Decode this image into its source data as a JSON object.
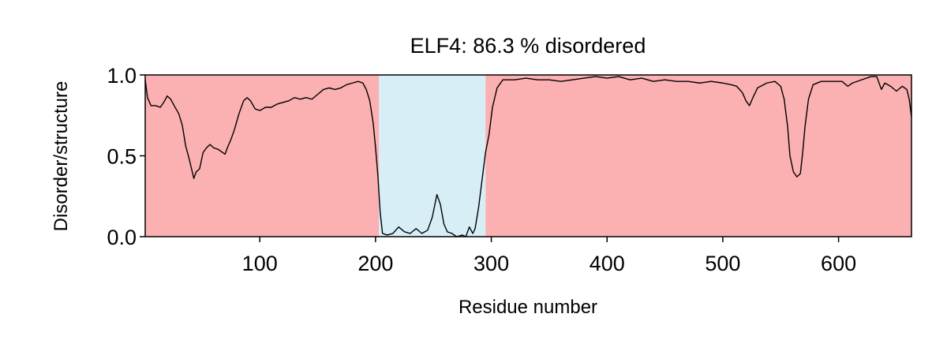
{
  "chart_data": {
    "type": "line",
    "title": "ELF4: 86.3 % disordered",
    "xlabel": "Residue number",
    "ylabel": "Disorder/structure",
    "xlim": [
      1,
      663
    ],
    "ylim": [
      0.0,
      1.0
    ],
    "grid": false,
    "x_ticks": [
      100,
      200,
      300,
      400,
      500,
      600
    ],
    "x_tick_labels": [
      "100",
      "200",
      "300",
      "400",
      "500",
      "600"
    ],
    "y_ticks": [
      0.0,
      0.5,
      1.0
    ],
    "y_tick_labels": [
      "0.0",
      "0.5",
      "1.0"
    ],
    "regions": [
      {
        "kind": "disordered",
        "start": 1,
        "end": 203,
        "color": "#fbb0b1"
      },
      {
        "kind": "ordered",
        "start": 203,
        "end": 295,
        "color": "#d8eef7"
      },
      {
        "kind": "disordered",
        "start": 295,
        "end": 663,
        "color": "#fbb0b1"
      }
    ],
    "series": [
      {
        "line_color": "#000000",
        "points": [
          [
            1,
            0.97
          ],
          [
            3,
            0.86
          ],
          [
            6,
            0.81
          ],
          [
            10,
            0.81
          ],
          [
            14,
            0.8
          ],
          [
            17,
            0.83
          ],
          [
            20,
            0.87
          ],
          [
            23,
            0.85
          ],
          [
            26,
            0.81
          ],
          [
            30,
            0.76
          ],
          [
            33,
            0.69
          ],
          [
            36,
            0.56
          ],
          [
            39,
            0.48
          ],
          [
            41,
            0.42
          ],
          [
            43,
            0.36
          ],
          [
            45,
            0.4
          ],
          [
            48,
            0.42
          ],
          [
            51,
            0.52
          ],
          [
            54,
            0.55
          ],
          [
            57,
            0.57
          ],
          [
            60,
            0.55
          ],
          [
            64,
            0.54
          ],
          [
            68,
            0.52
          ],
          [
            70,
            0.51
          ],
          [
            72,
            0.55
          ],
          [
            75,
            0.6
          ],
          [
            78,
            0.66
          ],
          [
            82,
            0.76
          ],
          [
            86,
            0.84
          ],
          [
            89,
            0.86
          ],
          [
            92,
            0.84
          ],
          [
            96,
            0.79
          ],
          [
            100,
            0.78
          ],
          [
            105,
            0.8
          ],
          [
            110,
            0.8
          ],
          [
            115,
            0.82
          ],
          [
            120,
            0.83
          ],
          [
            125,
            0.84
          ],
          [
            130,
            0.86
          ],
          [
            135,
            0.85
          ],
          [
            140,
            0.86
          ],
          [
            145,
            0.85
          ],
          [
            150,
            0.88
          ],
          [
            155,
            0.91
          ],
          [
            160,
            0.92
          ],
          [
            165,
            0.91
          ],
          [
            170,
            0.92
          ],
          [
            175,
            0.94
          ],
          [
            180,
            0.95
          ],
          [
            185,
            0.96
          ],
          [
            189,
            0.95
          ],
          [
            192,
            0.91
          ],
          [
            195,
            0.84
          ],
          [
            198,
            0.7
          ],
          [
            200,
            0.55
          ],
          [
            202,
            0.38
          ],
          [
            204,
            0.15
          ],
          [
            206,
            0.02
          ],
          [
            210,
            0.01
          ],
          [
            215,
            0.02
          ],
          [
            220,
            0.06
          ],
          [
            225,
            0.03
          ],
          [
            230,
            0.02
          ],
          [
            235,
            0.05
          ],
          [
            240,
            0.02
          ],
          [
            245,
            0.04
          ],
          [
            249,
            0.12
          ],
          [
            253,
            0.26
          ],
          [
            256,
            0.2
          ],
          [
            259,
            0.08
          ],
          [
            262,
            0.03
          ],
          [
            266,
            0.02
          ],
          [
            270,
            0.0
          ],
          [
            275,
            0.01
          ],
          [
            278,
            0.0
          ],
          [
            281,
            0.06
          ],
          [
            284,
            0.02
          ],
          [
            286,
            0.05
          ],
          [
            289,
            0.18
          ],
          [
            292,
            0.35
          ],
          [
            295,
            0.52
          ],
          [
            298,
            0.63
          ],
          [
            301,
            0.8
          ],
          [
            305,
            0.92
          ],
          [
            310,
            0.97
          ],
          [
            320,
            0.97
          ],
          [
            330,
            0.98
          ],
          [
            340,
            0.97
          ],
          [
            350,
            0.97
          ],
          [
            360,
            0.96
          ],
          [
            370,
            0.97
          ],
          [
            380,
            0.98
          ],
          [
            390,
            0.99
          ],
          [
            400,
            0.98
          ],
          [
            410,
            0.99
          ],
          [
            420,
            0.97
          ],
          [
            430,
            0.98
          ],
          [
            440,
            0.96
          ],
          [
            450,
            0.97
          ],
          [
            460,
            0.96
          ],
          [
            470,
            0.96
          ],
          [
            480,
            0.95
          ],
          [
            490,
            0.96
          ],
          [
            500,
            0.95
          ],
          [
            507,
            0.94
          ],
          [
            512,
            0.93
          ],
          [
            517,
            0.89
          ],
          [
            520,
            0.84
          ],
          [
            523,
            0.81
          ],
          [
            526,
            0.86
          ],
          [
            530,
            0.92
          ],
          [
            538,
            0.95
          ],
          [
            545,
            0.96
          ],
          [
            550,
            0.93
          ],
          [
            553,
            0.85
          ],
          [
            556,
            0.68
          ],
          [
            558,
            0.5
          ],
          [
            561,
            0.4
          ],
          [
            564,
            0.37
          ],
          [
            567,
            0.39
          ],
          [
            569,
            0.52
          ],
          [
            571,
            0.68
          ],
          [
            574,
            0.85
          ],
          [
            578,
            0.94
          ],
          [
            585,
            0.96
          ],
          [
            595,
            0.96
          ],
          [
            603,
            0.96
          ],
          [
            608,
            0.93
          ],
          [
            612,
            0.95
          ],
          [
            620,
            0.97
          ],
          [
            628,
            0.99
          ],
          [
            633,
            0.99
          ],
          [
            637,
            0.91
          ],
          [
            640,
            0.95
          ],
          [
            645,
            0.93
          ],
          [
            650,
            0.9
          ],
          [
            655,
            0.93
          ],
          [
            659,
            0.91
          ],
          [
            661,
            0.85
          ],
          [
            663,
            0.74
          ]
        ]
      }
    ]
  }
}
